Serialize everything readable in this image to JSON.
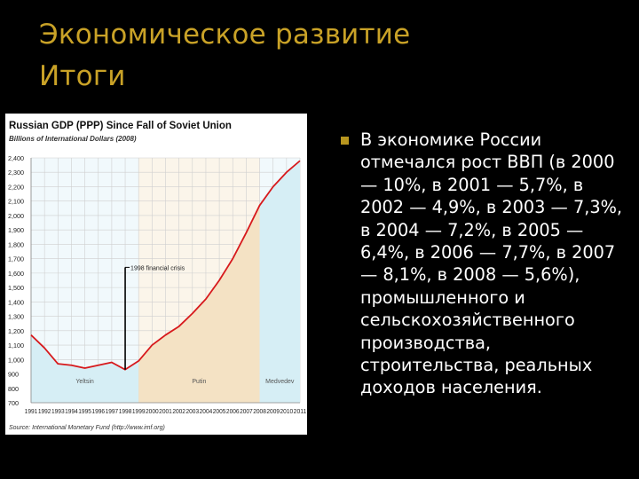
{
  "slide": {
    "title_line1": "Экономическое развитие",
    "title_line2": "Итоги",
    "body_text": "В экономике России отмечался рост ВВП (в 2000 — 10%, в 2001 — 5,7%, в 2002 — 4,9%, в 2003 — 7,3%, в 2004 — 7,2%, в 2005 — 6,4%, в 2006 — 7,7%, в 2007 — 8,1%, в 2008 — 5,6%), промышленного и сельскохозяйственного производства, строительства, реальных доходов населения.",
    "bullet_color": "#b8961f"
  },
  "chart_data": {
    "type": "line",
    "title": "Russian GDP (PPP) Since Fall of Soviet Union",
    "subtitle": "Billions of International Dollars (2008)",
    "source": "Source: International Monetary Fund (http://www.imf.org)",
    "x": [
      1991,
      1992,
      1993,
      1994,
      1995,
      1996,
      1997,
      1998,
      1999,
      2000,
      2001,
      2002,
      2003,
      2004,
      2005,
      2006,
      2007,
      2008,
      2009,
      2010,
      2011
    ],
    "x_tick_labels": [
      "1991",
      "1992",
      "1993",
      "1994",
      "1995",
      "1996",
      "1997",
      "1998",
      "1999",
      "2000",
      "2001",
      "2002",
      "2003",
      "2004",
      "2005",
      "2006",
      "2007",
      "2008",
      "2009",
      "2010",
      "2011"
    ],
    "series": [
      {
        "values": [
          1170,
          1080,
          970,
          960,
          940,
          960,
          980,
          930,
          990,
          1100,
          1170,
          1230,
          1320,
          1420,
          1550,
          1700,
          1880,
          2070,
          2200,
          2300,
          2380
        ]
      }
    ],
    "ylim": [
      700,
      2400
    ],
    "y_ticks": [
      700,
      800,
      900,
      1000,
      1100,
      1200,
      1300,
      1400,
      1500,
      1600,
      1700,
      1800,
      1900,
      2000,
      2100,
      2200,
      2300,
      2400
    ],
    "y_tick_labels": [
      "700",
      "800",
      "900",
      "1,000",
      "1,100",
      "1,200",
      "1,300",
      "1,400",
      "1,500",
      "1,600",
      "1,700",
      "1,800",
      "1,900",
      "2,000",
      "2,100",
      "2,200",
      "2,300",
      "2,400"
    ],
    "grid": true,
    "eras": [
      {
        "label": "Yeltsin",
        "start": 1991,
        "end": 1999,
        "color": "#d6eef5"
      },
      {
        "label": "Putin",
        "start": 1999,
        "end": 2008,
        "color": "#f4e2c4"
      },
      {
        "label": "Medvedev",
        "start": 2008,
        "end": 2011,
        "color": "#d6eef5"
      }
    ],
    "annotation": {
      "label": "1998 financial crisis",
      "x": 1998
    },
    "line_color": "#d7191c"
  }
}
